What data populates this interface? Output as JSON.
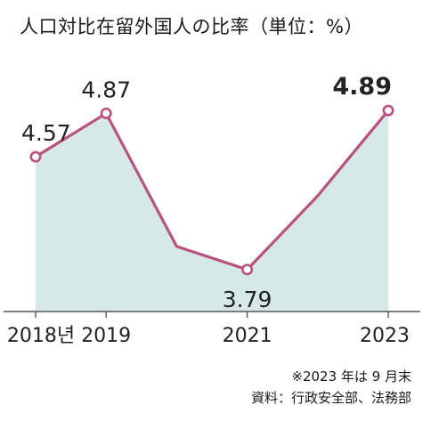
{
  "chart_data": {
    "type": "area",
    "title": "人口対比在留外国人の比率（単位：%）",
    "x": [
      2018,
      2019,
      2020,
      2021,
      2022,
      2023
    ],
    "xtick_labels": [
      "2018년",
      "2019",
      "2021",
      "2023"
    ],
    "xtick_positions": [
      2018,
      2019,
      2021,
      2023
    ],
    "values": [
      4.57,
      4.87,
      3.95,
      3.79,
      4.3,
      4.89
    ],
    "point_labels": [
      {
        "x": 2018,
        "text": "4.57",
        "pos": "above"
      },
      {
        "x": 2019,
        "text": "4.87",
        "pos": "above"
      },
      {
        "x": 2021,
        "text": "3.79",
        "pos": "below"
      },
      {
        "x": 2023,
        "text": "4.89",
        "pos": "above"
      }
    ],
    "marked_points": [
      2018,
      2019,
      2021,
      2023
    ],
    "ylim": [
      3.5,
      5.1
    ],
    "grid": false,
    "legend": "none",
    "colors": {
      "line": "#b9537e",
      "fill": "#d6e8e8",
      "marker_fill": "#ffffff"
    }
  },
  "notes": {
    "period": "※2023 年は 9 月末",
    "source": "資料：行政安全部、法務部"
  }
}
